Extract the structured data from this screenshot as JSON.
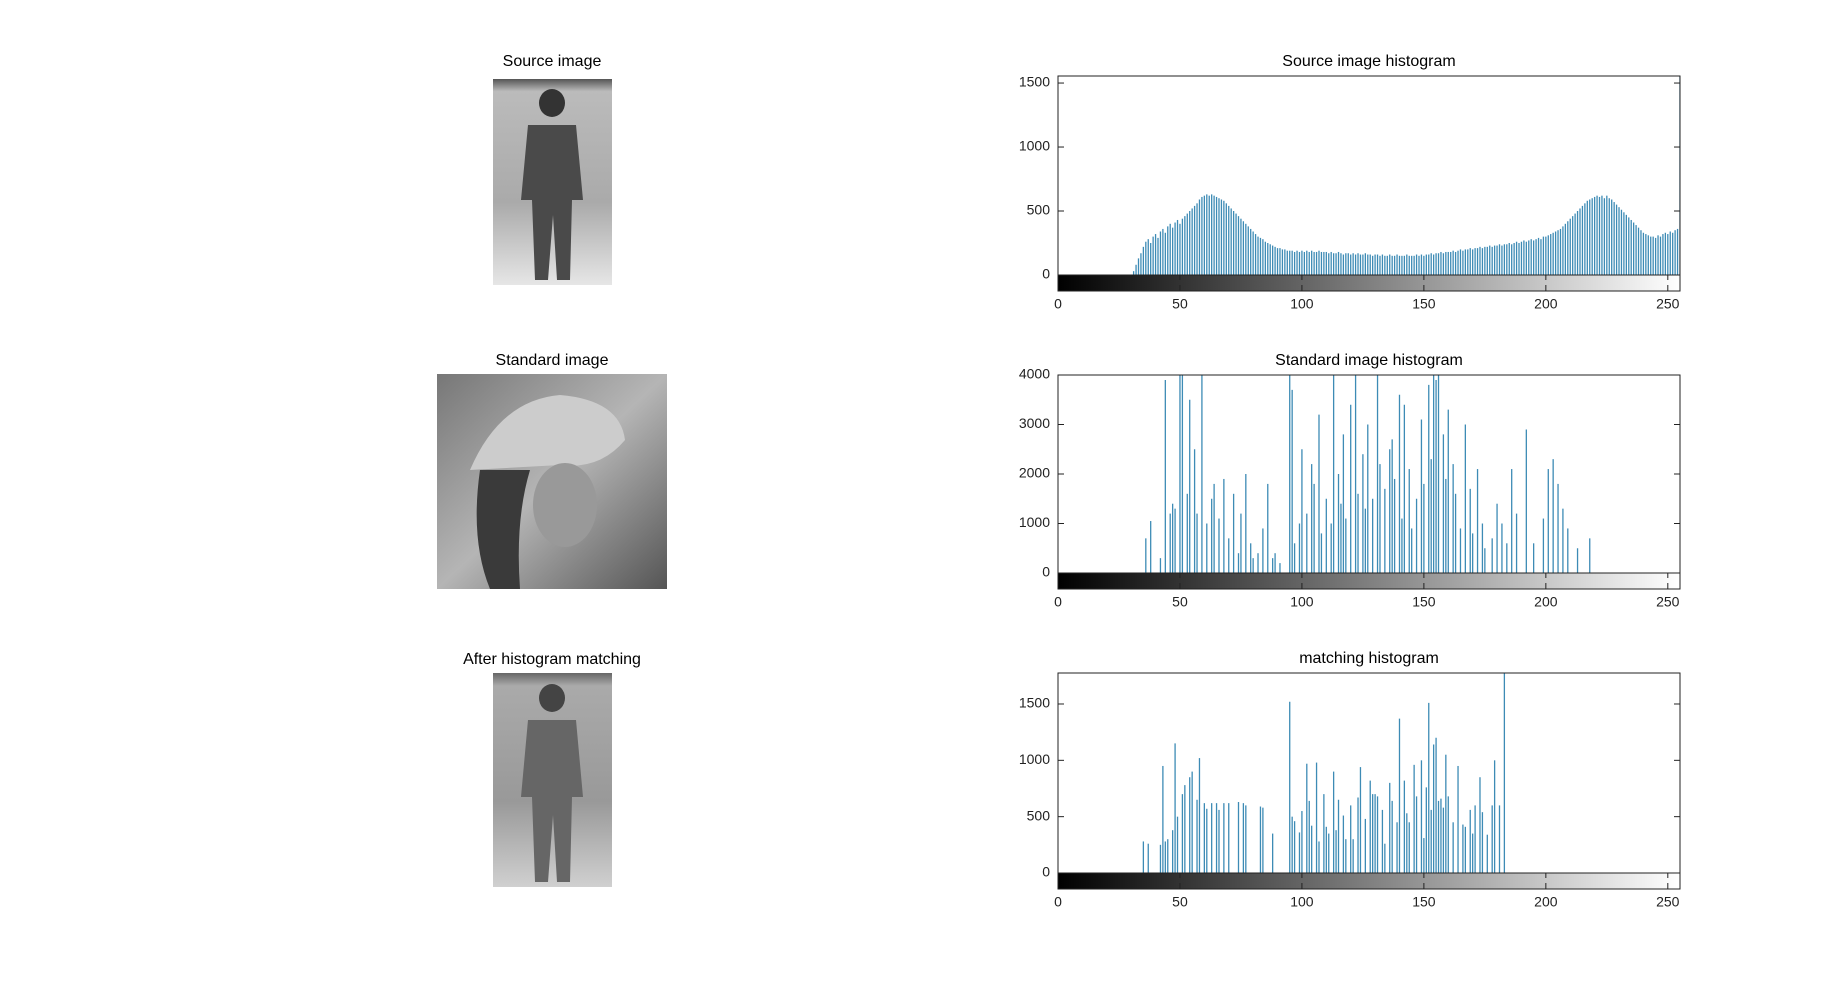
{
  "images": [
    {
      "title": "Source image"
    },
    {
      "title": "Standard image"
    },
    {
      "title": "After histogram matching"
    }
  ],
  "chart_data": [
    {
      "type": "stem",
      "title": "Source image histogram",
      "color": "#3d8bb5",
      "xlim": [
        0,
        255
      ],
      "xticks": [
        0,
        50,
        100,
        150,
        200,
        250
      ],
      "ylim": [
        0,
        1555
      ],
      "yticks": [
        0,
        500,
        1000,
        1500
      ],
      "x": [
        31,
        32,
        33,
        34,
        35,
        36,
        37,
        38,
        39,
        40,
        41,
        42,
        43,
        44,
        45,
        46,
        47,
        48,
        49,
        50,
        51,
        52,
        53,
        54,
        55,
        56,
        57,
        58,
        59,
        60,
        61,
        62,
        63,
        64,
        65,
        66,
        67,
        68,
        69,
        70,
        71,
        72,
        73,
        74,
        75,
        76,
        77,
        78,
        79,
        80,
        81,
        82,
        83,
        84,
        85,
        86,
        87,
        88,
        89,
        90,
        91,
        92,
        93,
        94,
        95,
        96,
        97,
        98,
        99,
        100,
        101,
        102,
        103,
        104,
        105,
        106,
        107,
        108,
        109,
        110,
        111,
        112,
        113,
        114,
        115,
        116,
        117,
        118,
        119,
        120,
        121,
        122,
        123,
        124,
        125,
        126,
        127,
        128,
        129,
        130,
        131,
        132,
        133,
        134,
        135,
        136,
        137,
        138,
        139,
        140,
        141,
        142,
        143,
        144,
        145,
        146,
        147,
        148,
        149,
        150,
        151,
        152,
        153,
        154,
        155,
        156,
        157,
        158,
        159,
        160,
        161,
        162,
        163,
        164,
        165,
        166,
        167,
        168,
        169,
        170,
        171,
        172,
        173,
        174,
        175,
        176,
        177,
        178,
        179,
        180,
        181,
        182,
        183,
        184,
        185,
        186,
        187,
        188,
        189,
        190,
        191,
        192,
        193,
        194,
        195,
        196,
        197,
        198,
        199,
        200,
        201,
        202,
        203,
        204,
        205,
        206,
        207,
        208,
        209,
        210,
        211,
        212,
        213,
        214,
        215,
        216,
        217,
        218,
        219,
        220,
        221,
        222,
        223,
        224,
        225,
        226,
        227,
        228,
        229,
        230,
        231,
        232,
        233,
        234,
        235,
        236,
        237,
        238,
        239,
        240,
        241,
        242,
        243,
        244,
        245,
        246,
        247,
        248,
        249,
        250,
        251,
        252,
        253,
        254,
        255
      ],
      "values": [
        30,
        80,
        130,
        170,
        220,
        260,
        280,
        250,
        300,
        320,
        290,
        340,
        360,
        330,
        380,
        400,
        370,
        410,
        430,
        400,
        440,
        460,
        480,
        500,
        520,
        540,
        560,
        590,
        610,
        620,
        630,
        620,
        630,
        620,
        610,
        600,
        590,
        580,
        560,
        540,
        520,
        500,
        480,
        460,
        440,
        420,
        400,
        380,
        360,
        340,
        320,
        300,
        290,
        280,
        260,
        250,
        240,
        230,
        220,
        210,
        210,
        200,
        200,
        190,
        190,
        190,
        180,
        190,
        180,
        190,
        180,
        190,
        180,
        190,
        180,
        180,
        190,
        180,
        180,
        180,
        170,
        180,
        170,
        170,
        180,
        170,
        160,
        170,
        170,
        160,
        170,
        160,
        170,
        160,
        160,
        170,
        160,
        160,
        150,
        160,
        160,
        150,
        160,
        150,
        150,
        160,
        150,
        150,
        160,
        150,
        150,
        150,
        160,
        150,
        150,
        150,
        160,
        150,
        160,
        150,
        160,
        160,
        170,
        160,
        170,
        170,
        180,
        170,
        180,
        180,
        180,
        190,
        180,
        190,
        200,
        190,
        200,
        200,
        210,
        200,
        210,
        210,
        220,
        210,
        220,
        220,
        230,
        220,
        230,
        230,
        240,
        230,
        240,
        240,
        250,
        240,
        250,
        260,
        250,
        260,
        270,
        260,
        270,
        280,
        270,
        280,
        290,
        280,
        300,
        300,
        310,
        320,
        330,
        340,
        350,
        360,
        380,
        400,
        420,
        440,
        460,
        480,
        500,
        520,
        540,
        560,
        580,
        590,
        600,
        610,
        620,
        610,
        620,
        600,
        620,
        600,
        590,
        570,
        550,
        530,
        510,
        490,
        470,
        450,
        430,
        410,
        390,
        370,
        350,
        330,
        320,
        310,
        300,
        300,
        290,
        310,
        300,
        320,
        330,
        320,
        340,
        330,
        350,
        360,
        1550
      ]
    },
    {
      "type": "stem",
      "title": "Standard image histogram",
      "color": "#3d8bb5",
      "xlim": [
        0,
        255
      ],
      "xticks": [
        0,
        50,
        100,
        150,
        200,
        250
      ],
      "ylim": [
        0,
        4000
      ],
      "yticks": [
        0,
        1000,
        2000,
        3000,
        4000
      ],
      "x": [
        36,
        38,
        42,
        44,
        46,
        47,
        48,
        50,
        51,
        53,
        54,
        56,
        57,
        59,
        61,
        63,
        64,
        66,
        68,
        70,
        72,
        74,
        75,
        77,
        79,
        80,
        82,
        84,
        86,
        88,
        89,
        91,
        95,
        96,
        97,
        99,
        100,
        102,
        104,
        105,
        107,
        108,
        110,
        112,
        113,
        115,
        116,
        117,
        118,
        120,
        122,
        123,
        125,
        126,
        127,
        129,
        131,
        132,
        134,
        136,
        137,
        138,
        140,
        141,
        142,
        144,
        145,
        147,
        149,
        150,
        152,
        153,
        154,
        155,
        156,
        158,
        159,
        160,
        162,
        163,
        165,
        167,
        169,
        170,
        172,
        174,
        175,
        178,
        180,
        182,
        184,
        186,
        188,
        192,
        195,
        199,
        201,
        203,
        205,
        207,
        209,
        213,
        218
      ],
      "values": [
        700,
        1050,
        300,
        3900,
        1200,
        1400,
        1300,
        4200,
        4200,
        1600,
        3500,
        2500,
        1200,
        4200,
        1000,
        1500,
        1800,
        1100,
        1900,
        700,
        1600,
        400,
        1200,
        2000,
        600,
        300,
        400,
        900,
        1800,
        300,
        400,
        200,
        4200,
        3700,
        600,
        1000,
        2500,
        1200,
        2200,
        1800,
        3200,
        800,
        1500,
        1000,
        4200,
        2000,
        1400,
        2800,
        1100,
        3400,
        4200,
        1600,
        2400,
        1300,
        3000,
        1500,
        4200,
        2200,
        1700,
        2500,
        2700,
        1900,
        3600,
        1100,
        3400,
        2100,
        900,
        1500,
        3100,
        1800,
        3800,
        2300,
        4200,
        3900,
        4200,
        2800,
        1900,
        3300,
        2200,
        1600,
        900,
        3000,
        1700,
        800,
        2100,
        1000,
        500,
        700,
        1400,
        1000,
        600,
        2100,
        1200,
        2900,
        600,
        1100,
        2100,
        2300,
        1800,
        1300,
        900,
        500,
        700
      ]
    },
    {
      "type": "stem",
      "title": "matching histogram",
      "color": "#3d8bb5",
      "xlim": [
        0,
        255
      ],
      "xticks": [
        0,
        50,
        100,
        150,
        200,
        250
      ],
      "ylim": [
        0,
        1775
      ],
      "yticks": [
        0,
        500,
        1000,
        1500
      ],
      "x": [
        35,
        37,
        42,
        43,
        44,
        45,
        47,
        48,
        49,
        51,
        52,
        54,
        55,
        57,
        58,
        60,
        61,
        63,
        65,
        66,
        68,
        70,
        74,
        76,
        77,
        83,
        84,
        88,
        95,
        96,
        97,
        99,
        100,
        102,
        103,
        104,
        106,
        107,
        109,
        110,
        111,
        113,
        114,
        115,
        117,
        118,
        120,
        121,
        123,
        124,
        126,
        128,
        129,
        130,
        131,
        133,
        134,
        136,
        137,
        139,
        140,
        142,
        143,
        144,
        146,
        147,
        149,
        150,
        151,
        152,
        153,
        154,
        155,
        156,
        157,
        158,
        159,
        160,
        162,
        164,
        166,
        167,
        169,
        170,
        171,
        173,
        174,
        176,
        178,
        179,
        181,
        183
      ],
      "values": [
        280,
        260,
        250,
        950,
        280,
        300,
        380,
        1150,
        500,
        700,
        780,
        850,
        900,
        650,
        1020,
        620,
        570,
        620,
        620,
        560,
        620,
        620,
        630,
        620,
        600,
        590,
        580,
        350,
        1520,
        500,
        460,
        360,
        550,
        970,
        640,
        420,
        980,
        280,
        700,
        410,
        350,
        900,
        380,
        650,
        510,
        300,
        600,
        300,
        670,
        940,
        480,
        820,
        700,
        700,
        680,
        560,
        260,
        800,
        640,
        450,
        1370,
        820,
        530,
        450,
        960,
        680,
        1000,
        310,
        760,
        1510,
        560,
        1140,
        1200,
        640,
        660,
        580,
        1050,
        680,
        450,
        950,
        430,
        410,
        560,
        350,
        600,
        850,
        540,
        340,
        600,
        1000,
        600,
        1800
      ]
    }
  ]
}
